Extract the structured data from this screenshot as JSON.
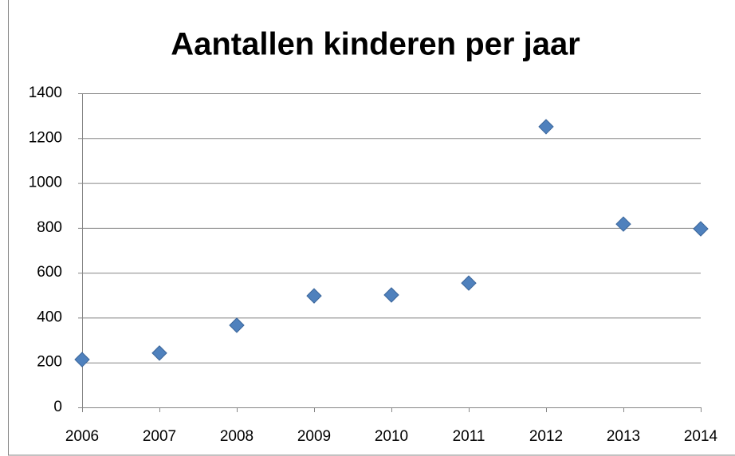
{
  "chart_data": {
    "type": "scatter",
    "title": "Aantallen kinderen per jaar",
    "x": [
      2006,
      2007,
      2008,
      2009,
      2010,
      2011,
      2012,
      2013,
      2014
    ],
    "values": [
      213,
      242,
      366,
      497,
      501,
      554,
      1251,
      817,
      796
    ],
    "color": "#4f81bd",
    "xlim": [
      2006,
      2014
    ],
    "xticks": [
      2006,
      2007,
      2008,
      2009,
      2010,
      2011,
      2012,
      2013,
      2014
    ],
    "ylim": [
      0,
      1400
    ],
    "yticks": [
      0,
      200,
      400,
      600,
      800,
      1000,
      1200,
      1400
    ],
    "grid": true
  }
}
